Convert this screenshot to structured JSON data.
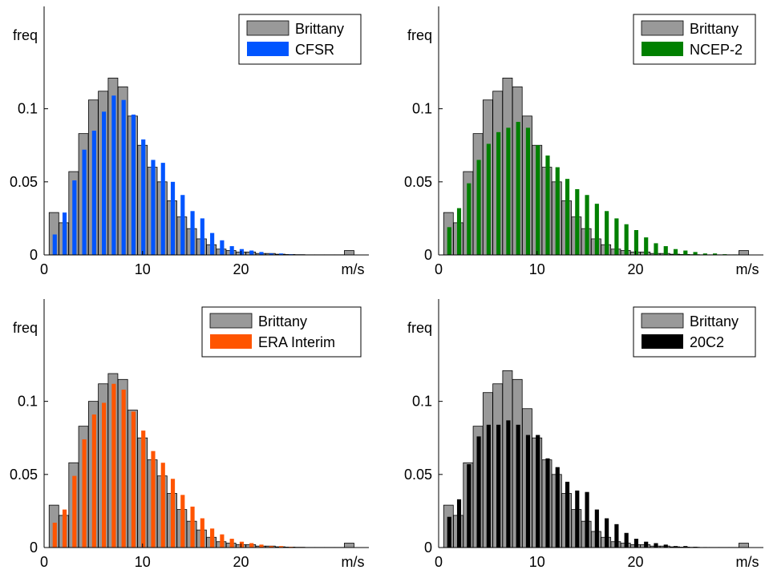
{
  "chart_data": [
    {
      "type": "bar",
      "x": [
        1,
        2,
        3,
        4,
        5,
        6,
        7,
        8,
        9,
        10,
        11,
        12,
        13,
        14,
        15,
        16,
        17,
        18,
        19,
        20,
        21,
        22,
        23,
        24,
        25,
        26,
        27,
        28,
        29,
        30,
        31,
        32
      ],
      "xlim": [
        0,
        33
      ],
      "ylim": [
        0,
        0.17
      ],
      "xticks": [
        "0",
        "10",
        "20"
      ],
      "yticks": [
        "0",
        "0.05",
        "0.1"
      ],
      "xunit": "m/s",
      "ylabel": "freq",
      "legend_position": "top-right",
      "series": [
        {
          "name": "Brittany",
          "color": "#999999",
          "values": [
            0.029,
            0.022,
            0.057,
            0.083,
            0.106,
            0.112,
            0.121,
            0.115,
            0.095,
            0.075,
            0.06,
            0.05,
            0.037,
            0.026,
            0.018,
            0.011,
            0.007,
            0.004,
            0.003,
            0.002,
            0.002,
            0.001,
            0.001,
            0.0005,
            0.0003,
            0.0002,
            0.0001,
            0.0001,
            0.0001,
            0.0001,
            0.003,
            0.0
          ]
        },
        {
          "name": "CFSR",
          "color": "#0055ff",
          "values": [
            0.014,
            0.029,
            0.051,
            0.072,
            0.085,
            0.098,
            0.109,
            0.106,
            0.096,
            0.079,
            0.065,
            0.063,
            0.05,
            0.041,
            0.03,
            0.025,
            0.015,
            0.01,
            0.006,
            0.004,
            0.003,
            0.002,
            0.001,
            0.001,
            0.0005,
            0.0003,
            0.0002,
            0.0001,
            0.0001,
            0.0001,
            0.0,
            0.0
          ]
        }
      ]
    },
    {
      "type": "bar",
      "x": [
        1,
        2,
        3,
        4,
        5,
        6,
        7,
        8,
        9,
        10,
        11,
        12,
        13,
        14,
        15,
        16,
        17,
        18,
        19,
        20,
        21,
        22,
        23,
        24,
        25,
        26,
        27,
        28,
        29,
        30,
        31,
        32
      ],
      "xlim": [
        0,
        33
      ],
      "ylim": [
        0,
        0.17
      ],
      "xticks": [
        "0",
        "10",
        "20"
      ],
      "yticks": [
        "0",
        "0.05",
        "0.1"
      ],
      "xunit": "m/s",
      "ylabel": "freq",
      "legend_position": "top-right",
      "series": [
        {
          "name": "Brittany",
          "color": "#999999",
          "values": [
            0.029,
            0.022,
            0.057,
            0.083,
            0.106,
            0.112,
            0.121,
            0.115,
            0.095,
            0.075,
            0.06,
            0.05,
            0.037,
            0.026,
            0.018,
            0.011,
            0.007,
            0.004,
            0.003,
            0.002,
            0.002,
            0.001,
            0.001,
            0.0005,
            0.0003,
            0.0002,
            0.0001,
            0.0001,
            0.0001,
            0.0001,
            0.003,
            0.0
          ]
        },
        {
          "name": "NCEP-2",
          "color": "#008000",
          "values": [
            0.019,
            0.032,
            0.049,
            0.065,
            0.076,
            0.084,
            0.087,
            0.091,
            0.087,
            0.075,
            0.068,
            0.06,
            0.052,
            0.045,
            0.041,
            0.035,
            0.03,
            0.025,
            0.021,
            0.017,
            0.012,
            0.008,
            0.006,
            0.004,
            0.003,
            0.002,
            0.001,
            0.001,
            0.0005,
            0.0003,
            0.0001,
            0.0001
          ]
        }
      ]
    },
    {
      "type": "bar",
      "x": [
        1,
        2,
        3,
        4,
        5,
        6,
        7,
        8,
        9,
        10,
        11,
        12,
        13,
        14,
        15,
        16,
        17,
        18,
        19,
        20,
        21,
        22,
        23,
        24,
        25,
        26,
        27,
        28,
        29,
        30,
        31,
        32
      ],
      "xlim": [
        0,
        33
      ],
      "ylim": [
        0,
        0.17
      ],
      "xticks": [
        "0",
        "10",
        "20"
      ],
      "yticks": [
        "0",
        "0.05",
        "0.1"
      ],
      "xunit": "m/s",
      "ylabel": "freq",
      "legend_position": "top-right",
      "series": [
        {
          "name": "Brittany",
          "color": "#999999",
          "values": [
            0.029,
            0.022,
            0.058,
            0.083,
            0.1,
            0.112,
            0.119,
            0.115,
            0.094,
            0.075,
            0.06,
            0.049,
            0.037,
            0.026,
            0.018,
            0.012,
            0.007,
            0.004,
            0.003,
            0.002,
            0.002,
            0.001,
            0.001,
            0.0005,
            0.0003,
            0.0002,
            0.0001,
            0.0001,
            0.0001,
            0.0001,
            0.003,
            0.0
          ]
        },
        {
          "name": "ERA Interim",
          "color": "#ff5500",
          "values": [
            0.017,
            0.026,
            0.049,
            0.074,
            0.091,
            0.099,
            0.112,
            0.108,
            0.093,
            0.08,
            0.066,
            0.058,
            0.047,
            0.036,
            0.028,
            0.02,
            0.013,
            0.009,
            0.006,
            0.004,
            0.003,
            0.002,
            0.001,
            0.001,
            0.0005,
            0.0003,
            0.0002,
            0.0001,
            0.0001,
            0.0001,
            0.0,
            0.0
          ]
        }
      ]
    },
    {
      "type": "bar",
      "x": [
        1,
        2,
        3,
        4,
        5,
        6,
        7,
        8,
        9,
        10,
        11,
        12,
        13,
        14,
        15,
        16,
        17,
        18,
        19,
        20,
        21,
        22,
        23,
        24,
        25,
        26,
        27,
        28,
        29,
        30,
        31,
        32
      ],
      "xlim": [
        0,
        33
      ],
      "ylim": [
        0,
        0.17
      ],
      "xticks": [
        "0",
        "10",
        "20"
      ],
      "yticks": [
        "0",
        "0.05",
        "0.1"
      ],
      "xunit": "m/s",
      "ylabel": "freq",
      "legend_position": "top-right",
      "series": [
        {
          "name": "Brittany",
          "color": "#999999",
          "values": [
            0.029,
            0.022,
            0.058,
            0.083,
            0.106,
            0.112,
            0.121,
            0.115,
            0.095,
            0.075,
            0.06,
            0.05,
            0.037,
            0.026,
            0.018,
            0.011,
            0.007,
            0.004,
            0.003,
            0.002,
            0.002,
            0.001,
            0.001,
            0.0005,
            0.0003,
            0.0002,
            0.0001,
            0.0001,
            0.0001,
            0.0001,
            0.003,
            0.0
          ]
        },
        {
          "name": "20C2",
          "color": "#000000",
          "values": [
            0.021,
            0.033,
            0.057,
            0.076,
            0.084,
            0.084,
            0.087,
            0.084,
            0.077,
            0.077,
            0.061,
            0.055,
            0.045,
            0.039,
            0.038,
            0.026,
            0.02,
            0.016,
            0.01,
            0.006,
            0.004,
            0.003,
            0.002,
            0.001,
            0.001,
            0.0005,
            0.0003,
            0.0002,
            0.0001,
            0.0001,
            0.0001,
            0.0001
          ]
        }
      ]
    }
  ]
}
